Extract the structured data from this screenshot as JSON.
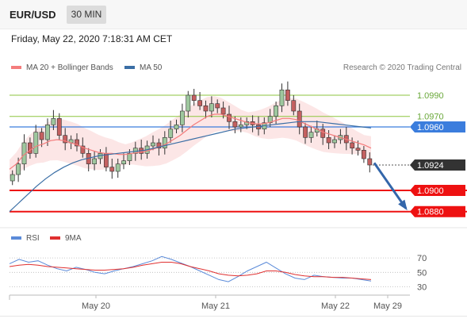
{
  "header": {
    "pair": "EUR/USD",
    "timeframe": "30 MIN"
  },
  "datetime": "Friday, May 22, 2020 7:18:31 AM CET",
  "legend": {
    "ma20_label": "MA 20 + Bollinger Bands",
    "ma50_label": "MA 50",
    "credit": "Research © 2020 Trading Central",
    "rsi_label": "RSI",
    "rsi_ma_label": "9MA"
  },
  "colors": {
    "ma20": "#f47c7c",
    "ma50": "#3a6ea5",
    "bands_fill": "#fbdede",
    "resistance": "#8dc63f",
    "pivot": "#3b7ddd",
    "support": "#ee1111",
    "current": "#333333",
    "arrow": "#3366aa",
    "rsi": "#5b8bd9",
    "rsi_ma": "#e03030"
  },
  "chart_data": [
    {
      "type": "candlestick",
      "ylim": [
        1.087,
        1.1005
      ],
      "x_tick_labels": [
        "May 20",
        "May 21",
        "May 22",
        "May 29"
      ],
      "levels": [
        {
          "name": "resistance-2",
          "value": 1.099,
          "label": "1.0990",
          "kind": "resistance"
        },
        {
          "name": "resistance-1",
          "value": 1.097,
          "label": "1.0970",
          "kind": "resistance"
        },
        {
          "name": "pivot",
          "value": 1.096,
          "label": "1.0960",
          "kind": "pivot"
        },
        {
          "name": "current",
          "value": 1.0924,
          "label": "1.0924",
          "kind": "current"
        },
        {
          "name": "support-1",
          "value": 1.09,
          "label": "1.0900",
          "kind": "support"
        },
        {
          "name": "support-2",
          "value": 1.088,
          "label": "1.0880",
          "kind": "support"
        }
      ],
      "projection": {
        "from": 1.0926,
        "to": 1.088
      },
      "closes": [
        1.0915,
        1.0925,
        1.0945,
        1.0935,
        1.0955,
        1.0948,
        1.0962,
        1.0968,
        1.0952,
        1.0945,
        1.0948,
        1.0942,
        1.0935,
        1.0925,
        1.093,
        1.0935,
        1.0922,
        1.0918,
        1.0925,
        1.0928,
        1.0935,
        1.094,
        1.0935,
        1.0942,
        1.0945,
        1.094,
        1.095,
        1.0958,
        1.0962,
        1.0975,
        1.099,
        1.0985,
        1.098,
        1.0975,
        1.0982,
        1.0978,
        1.0972,
        1.0965,
        1.096,
        1.0962,
        1.0965,
        1.0962,
        1.0958,
        1.0964,
        1.097,
        1.098,
        1.0995,
        1.0985,
        1.0975,
        1.096,
        1.095,
        1.0955,
        1.0958,
        1.095,
        1.0945,
        1.0948,
        1.0952,
        1.0945,
        1.094,
        1.0938,
        1.093,
        1.0924
      ],
      "ma20": [
        1.092,
        1.0925,
        1.0933,
        1.0938,
        1.0942,
        1.0944,
        1.0947,
        1.0948,
        1.0947,
        1.0945,
        1.0943,
        1.094,
        1.0938,
        1.0936,
        1.0935,
        1.0935,
        1.0934,
        1.0934,
        1.0935,
        1.0936,
        1.0937,
        1.0939,
        1.0941,
        1.0944,
        1.0948,
        1.0952,
        1.0957,
        1.0962,
        1.0966,
        1.097,
        1.0972,
        1.0972,
        1.097,
        1.0968,
        1.0966,
        1.0964,
        1.0963,
        1.0963,
        1.0964,
        1.0966,
        1.0968,
        1.0968,
        1.0967,
        1.0964,
        1.0961,
        1.0958,
        1.0955,
        1.0953,
        1.0951,
        1.0949,
        1.0947,
        1.0945,
        1.0943,
        1.094
      ],
      "ma50": [
        1.088,
        1.0888,
        1.0896,
        1.0904,
        1.0911,
        1.0917,
        1.0922,
        1.0926,
        1.0929,
        1.0931,
        1.0933,
        1.0934,
        1.0935,
        1.0936,
        1.0937,
        1.0938,
        1.094,
        1.0942,
        1.0944,
        1.0946,
        1.0948,
        1.095,
        1.0952,
        1.0954,
        1.0956,
        1.0958,
        1.0959,
        1.096,
        1.0961,
        1.0962,
        1.0963,
        1.0964,
        1.0965,
        1.0965,
        1.0965,
        1.0964,
        1.0963,
        1.0962,
        1.0961,
        1.096,
        1.0959
      ]
    },
    {
      "type": "line",
      "ylim": [
        25,
        80
      ],
      "y_tick_labels": [
        "70",
        "50",
        "30"
      ],
      "y_ticks": [
        70,
        50,
        30
      ],
      "series": [
        {
          "name": "RSI",
          "values": [
            62,
            68,
            64,
            66,
            60,
            55,
            52,
            57,
            54,
            50,
            48,
            52,
            55,
            58,
            62,
            66,
            72,
            68,
            63,
            58,
            52,
            46,
            40,
            37,
            44,
            52,
            58,
            64,
            56,
            48,
            42,
            40,
            46,
            44,
            43,
            42,
            42,
            40,
            38
          ]
        },
        {
          "name": "9MA",
          "values": [
            58,
            60,
            61,
            60,
            58,
            57,
            56,
            55,
            54,
            53,
            53,
            54,
            55,
            57,
            60,
            62,
            64,
            64,
            62,
            58,
            55,
            52,
            48,
            46,
            45,
            46,
            48,
            52,
            52,
            50,
            47,
            45,
            44,
            44,
            43,
            43,
            42,
            41,
            40
          ]
        }
      ]
    }
  ]
}
